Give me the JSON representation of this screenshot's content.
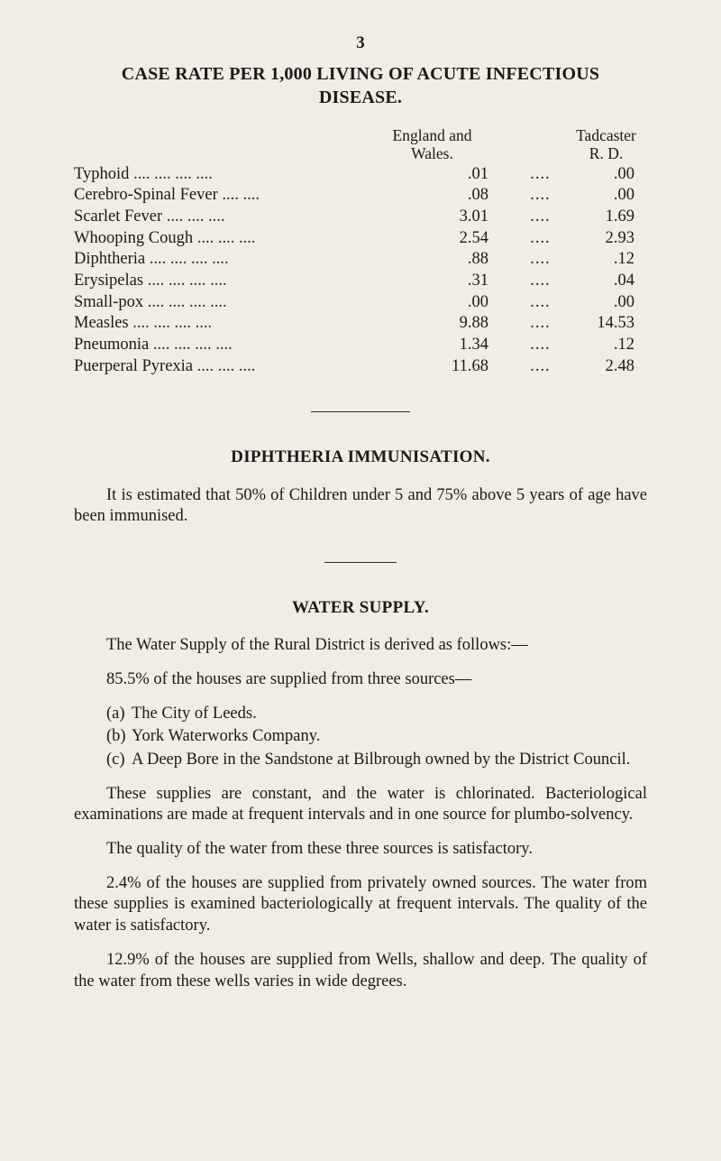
{
  "page_number": "3",
  "title_line1": "CASE RATE PER 1,000 LIVING OF ACUTE INFECTIOUS",
  "title_line2": "DISEASE.",
  "table": {
    "header_ew_l1": "England and",
    "header_ew_l2": "Wales.",
    "header_tad_l1": "Tadcaster",
    "header_tad_l2": "R. D.",
    "rows": [
      {
        "label": "Typhoid",
        "leaders": "....    ....       ....    ....",
        "ew": ".01",
        "dots": "....",
        "tad": ".00"
      },
      {
        "label": "Cerebro-Spinal Fever",
        "leaders": "       ....    ....",
        "ew": ".08",
        "dots": "....",
        "tad": ".00"
      },
      {
        "label": "Scarlet Fever",
        "leaders": "         ....    ....    ....",
        "ew": "3.01",
        "dots": "....",
        "tad": "1.69"
      },
      {
        "label": "Whooping Cough",
        "leaders": "  ....    ....    ....",
        "ew": "2.54",
        "dots": "....",
        "tad": "2.93"
      },
      {
        "label": "Diphtheria",
        "leaders": "    ....    ....    ....    ....",
        "ew": ".88",
        "dots": "....",
        "tad": ".12"
      },
      {
        "label": "Erysipelas",
        "leaders": "    ....    ....    ....    ....",
        "ew": ".31",
        "dots": "....",
        "tad": ".04"
      },
      {
        "label": "Small-pox",
        "leaders": "    ....    ....    ....    ....",
        "ew": ".00",
        "dots": "....",
        "tad": ".00"
      },
      {
        "label": "Measles",
        "leaders": "       ....    ....    ....    ....",
        "ew": "9.88",
        "dots": "....",
        "tad": "14.53"
      },
      {
        "label": "Pneumonia",
        "leaders": "    ....    ....    ....    ....",
        "ew": "1.34",
        "dots": "....",
        "tad": ".12"
      },
      {
        "label": "Puerperal Pyrexia",
        "leaders": " ....    ....    ....",
        "ew": "11.68",
        "dots": "....",
        "tad": "2.48"
      }
    ]
  },
  "diphtheria": {
    "heading": "DIPHTHERIA IMMUNISATION.",
    "para": "It is estimated that 50% of Children under 5 and 75% above 5 years of age have been immunised."
  },
  "water": {
    "heading": "WATER SUPPLY.",
    "p1": "The Water Supply of the Rural District is derived as follows:—",
    "p2_lead": "85.5% of the houses are supplied from three sources—",
    "items": [
      {
        "marker": "(a)",
        "text": "The City of Leeds."
      },
      {
        "marker": "(b)",
        "text": "York Waterworks Company."
      },
      {
        "marker": "(c)",
        "text": "A Deep Bore in the Sandstone at Bilbrough owned by the District Council."
      }
    ],
    "p3": "These supplies are constant, and the water is chlorinated. Bacteriological examinations are made at frequent intervals and in one source for plumbo-solvency.",
    "p4": "The quality of the water from these three sources is satisfactory.",
    "p5": "2.4% of the houses are supplied from privately owned sources. The water from these supplies is examined bacterio­logically at frequent intervals. The quality of the water is satisfactory.",
    "p6": "12.9% of the houses are supplied from Wells, shallow and deep. The quality of the water from these wells varies in wide degrees."
  }
}
